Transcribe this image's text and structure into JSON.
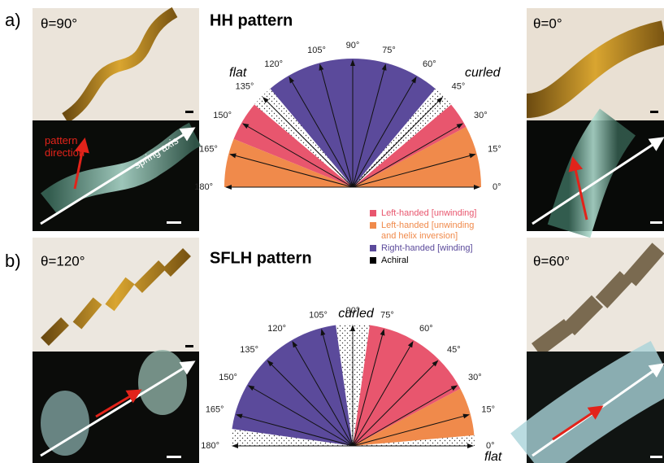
{
  "panels": [
    {
      "label": "a)",
      "title": "HH pattern",
      "left_photo": {
        "angle": "θ=90°",
        "annotations": [
          "pattern direction",
          "spring axis"
        ]
      },
      "right_photo": {
        "angle": "θ=0°"
      },
      "diagram": {
        "left_end": "flat",
        "right_end": "curled",
        "angle_labels": [
          "0°",
          "15°",
          "30°",
          "45°",
          "60°",
          "75°",
          "90°",
          "105°",
          "120°",
          "135°",
          "150°",
          "165°",
          "180°"
        ]
      }
    },
    {
      "label": "b)",
      "title": "SFLH pattern",
      "left_photo": {
        "angle": "θ=120°"
      },
      "right_photo": {
        "angle": "θ=60°"
      },
      "diagram": {
        "top_end": "curled",
        "right_end": "flat",
        "angle_labels": [
          "0°",
          "15°",
          "30°",
          "45°",
          "60°",
          "75°",
          "90°",
          "105°",
          "120°",
          "135°",
          "150°",
          "165°",
          "180°"
        ]
      }
    }
  ],
  "legend": [
    {
      "lines": [
        "Left-handed [unwinding]"
      ],
      "color": "#e8566e"
    },
    {
      "lines": [
        "Left-handed [unwinding",
        "and helix inversion]"
      ],
      "color": "#f08a4b"
    },
    {
      "lines": [
        "Right-handed [winding]"
      ],
      "color": "#5b4a9b"
    },
    {
      "lines": [
        "Achiral"
      ],
      "color": "#000000"
    }
  ]
}
